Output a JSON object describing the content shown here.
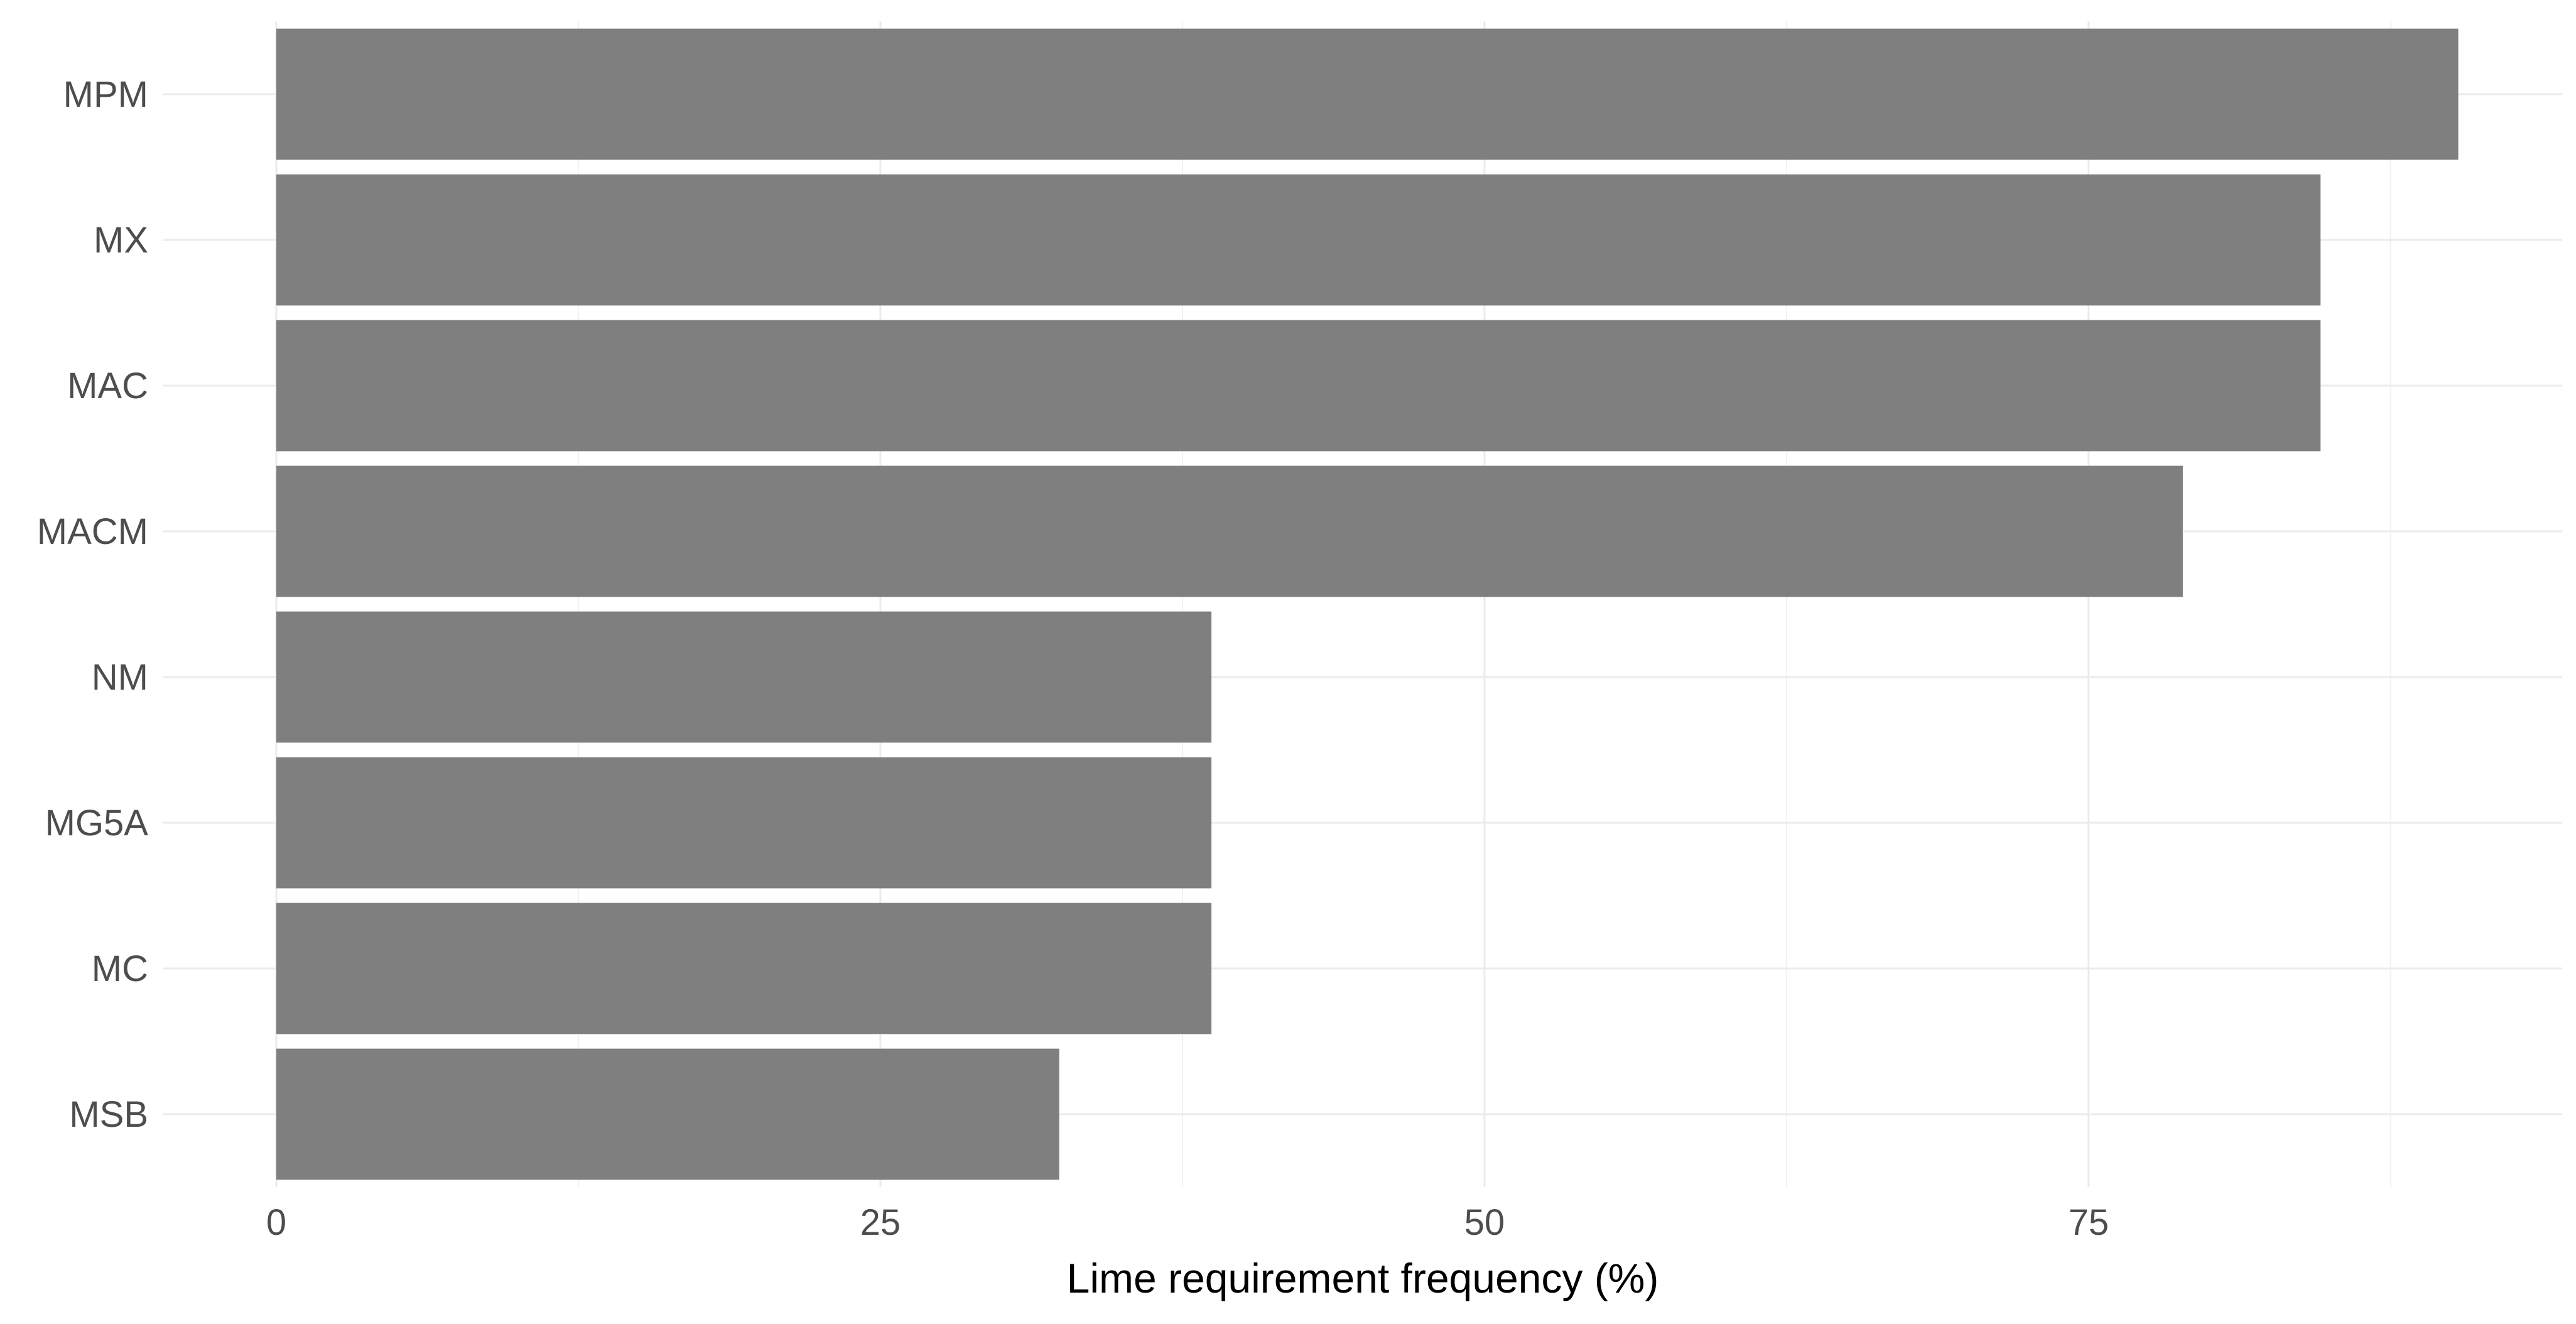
{
  "chart_data": {
    "type": "bar",
    "orientation": "horizontal",
    "categories": [
      "MPM",
      "MX",
      "MAC",
      "MACM",
      "NM",
      "MG5A",
      "MC",
      "MSB"
    ],
    "values": [
      90.3,
      84.6,
      84.6,
      78.9,
      38.7,
      38.7,
      38.7,
      32.4
    ],
    "xlabel": "Lime requirement frequency (%)",
    "ylabel": "",
    "xlim": [
      0,
      94.6
    ],
    "xticks": [
      0,
      25,
      50,
      75
    ],
    "xtick_labels": [
      "0",
      "25",
      "50",
      "75"
    ],
    "grid": true,
    "legend": "none",
    "bar_color": "#7f7f7f"
  }
}
